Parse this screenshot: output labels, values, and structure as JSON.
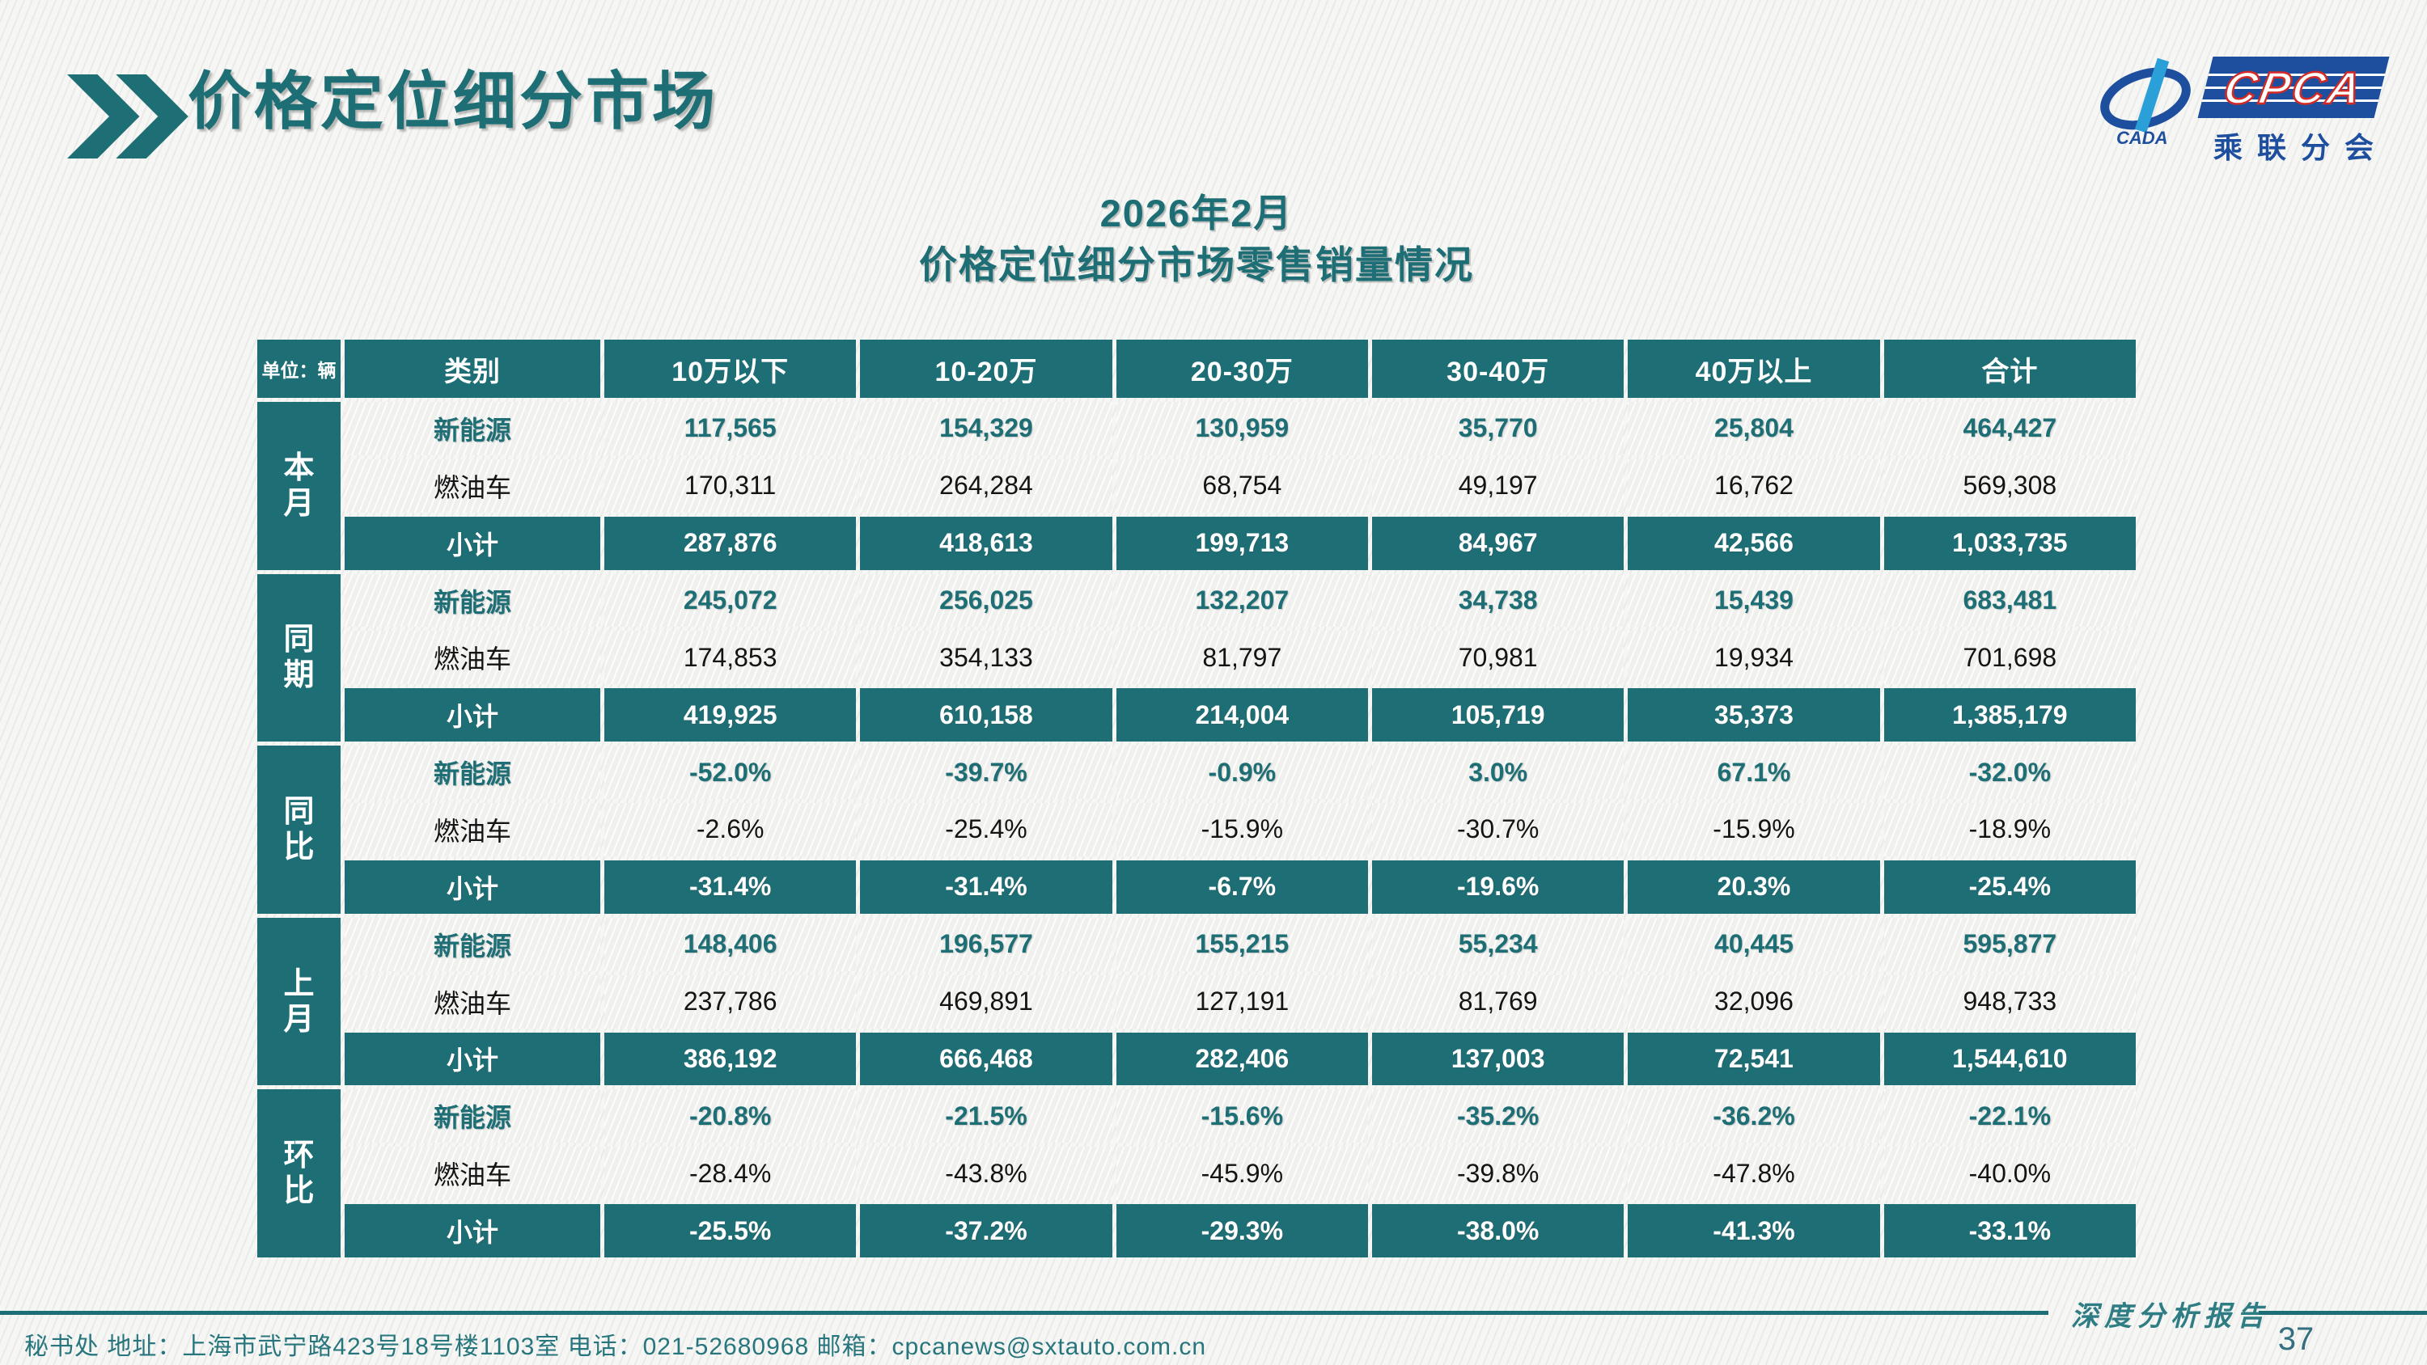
{
  "page": {
    "title": "价格定位细分市场"
  },
  "logo": {
    "cpca_text": "CPCA",
    "cada_text": "CADA",
    "subtitle": "乘联分会"
  },
  "table": {
    "title_line1": "2026年2月",
    "title_line2": "价格定位细分市场零售销量情况",
    "unit_label": "单位：辆",
    "columns": [
      "类别",
      "10万以下",
      "10-20万",
      "20-30万",
      "30-40万",
      "40万以上",
      "合计"
    ],
    "groups": [
      {
        "label": "本月",
        "rows": [
          {
            "label": "新能源",
            "type": "nev",
            "values": [
              "117,565",
              "154,329",
              "130,959",
              "35,770",
              "25,804",
              "464,427"
            ]
          },
          {
            "label": "燃油车",
            "type": "ice",
            "values": [
              "170,311",
              "264,284",
              "68,754",
              "49,197",
              "16,762",
              "569,308"
            ]
          },
          {
            "label": "小计",
            "type": "subtotal",
            "values": [
              "287,876",
              "418,613",
              "199,713",
              "84,967",
              "42,566",
              "1,033,735"
            ]
          }
        ]
      },
      {
        "label": "同期",
        "rows": [
          {
            "label": "新能源",
            "type": "nev",
            "values": [
              "245,072",
              "256,025",
              "132,207",
              "34,738",
              "15,439",
              "683,481"
            ]
          },
          {
            "label": "燃油车",
            "type": "ice",
            "values": [
              "174,853",
              "354,133",
              "81,797",
              "70,981",
              "19,934",
              "701,698"
            ]
          },
          {
            "label": "小计",
            "type": "subtotal",
            "values": [
              "419,925",
              "610,158",
              "214,004",
              "105,719",
              "35,373",
              "1,385,179"
            ]
          }
        ]
      },
      {
        "label": "同比",
        "rows": [
          {
            "label": "新能源",
            "type": "nev",
            "values": [
              "-52.0%",
              "-39.7%",
              "-0.9%",
              "3.0%",
              "67.1%",
              "-32.0%"
            ]
          },
          {
            "label": "燃油车",
            "type": "ice",
            "values": [
              "-2.6%",
              "-25.4%",
              "-15.9%",
              "-30.7%",
              "-15.9%",
              "-18.9%"
            ]
          },
          {
            "label": "小计",
            "type": "subtotal",
            "values": [
              "-31.4%",
              "-31.4%",
              "-6.7%",
              "-19.6%",
              "20.3%",
              "-25.4%"
            ]
          }
        ]
      },
      {
        "label": "上月",
        "rows": [
          {
            "label": "新能源",
            "type": "nev",
            "values": [
              "148,406",
              "196,577",
              "155,215",
              "55,234",
              "40,445",
              "595,877"
            ]
          },
          {
            "label": "燃油车",
            "type": "ice",
            "values": [
              "237,786",
              "469,891",
              "127,191",
              "81,769",
              "32,096",
              "948,733"
            ]
          },
          {
            "label": "小计",
            "type": "subtotal",
            "values": [
              "386,192",
              "666,468",
              "282,406",
              "137,003",
              "72,541",
              "1,544,610"
            ]
          }
        ]
      },
      {
        "label": "环比",
        "rows": [
          {
            "label": "新能源",
            "type": "nev",
            "values": [
              "-20.8%",
              "-21.5%",
              "-15.6%",
              "-35.2%",
              "-36.2%",
              "-22.1%"
            ]
          },
          {
            "label": "燃油车",
            "type": "ice",
            "values": [
              "-28.4%",
              "-43.8%",
              "-45.9%",
              "-39.8%",
              "-47.8%",
              "-40.0%"
            ]
          },
          {
            "label": "小计",
            "type": "subtotal",
            "values": [
              "-25.5%",
              "-37.2%",
              "-29.3%",
              "-38.0%",
              "-41.3%",
              "-33.1%"
            ]
          }
        ]
      }
    ]
  },
  "footer": {
    "contact": "秘书处   地址：上海市武宁路423号18号楼1103室  电话：021-52680968   邮箱：cpcanews@sxtauto.com.cn",
    "report_label": "深度分析报告",
    "page_number": "37"
  },
  "colors": {
    "teal": "#1d6e75",
    "logo_blue": "#1e4f9e",
    "logo_red": "#d42a26",
    "ink": "#141414"
  }
}
